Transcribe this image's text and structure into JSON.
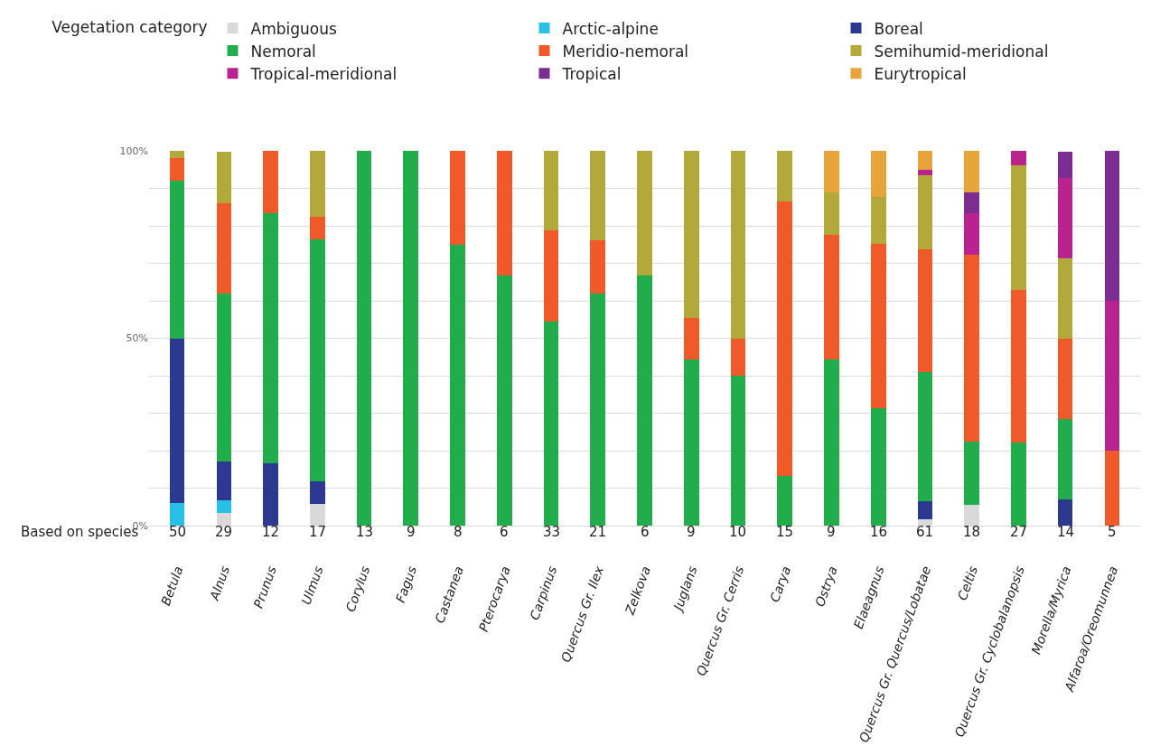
{
  "chart_data": {
    "type": "bar",
    "stacked": true,
    "legend_title": "Vegetation category",
    "legend": "top",
    "categories": [
      "Betula",
      "Alnus",
      "Prunus",
      "Ulmus",
      "Corylus",
      "Fagus",
      "Castanea",
      "Pterocarya",
      "Carpinus",
      "Quercus Gr. Ilex",
      "Zelkova",
      "Juglans",
      "Quercus Gr. Cerris",
      "Carya",
      "Ostrya",
      "Elaeagnus",
      "Quercus Gr. Quercus/Lobatae",
      "Celtis",
      "Quercus Gr. Cyclobalanopsis",
      "Morella/Myrica",
      "Alfaroa/Oreomunnea"
    ],
    "series": [
      {
        "name": "Ambiguous",
        "color": "#d9d9d9",
        "values": [
          null,
          3.4,
          null,
          5.9,
          null,
          null,
          null,
          null,
          null,
          null,
          null,
          null,
          null,
          null,
          null,
          null,
          1.6,
          5.6,
          null,
          null,
          null
        ]
      },
      {
        "name": "Arctic-alpine",
        "color": "#29c0e8",
        "values": [
          6.0,
          3.4,
          null,
          null,
          null,
          null,
          null,
          null,
          null,
          null,
          null,
          null,
          null,
          null,
          null,
          null,
          null,
          null,
          null,
          null,
          null
        ]
      },
      {
        "name": "Boreal",
        "color": "#2b3990",
        "values": [
          44.0,
          10.3,
          16.7,
          5.9,
          null,
          null,
          null,
          null,
          null,
          null,
          null,
          null,
          null,
          null,
          null,
          null,
          4.9,
          null,
          null,
          7.1,
          null
        ]
      },
      {
        "name": "Nemoral",
        "color": "#21ad4b",
        "values": [
          42.0,
          44.8,
          66.7,
          64.7,
          100,
          100,
          75.0,
          66.7,
          54.5,
          61.9,
          66.7,
          44.4,
          40.0,
          13.3,
          44.4,
          31.3,
          34.4,
          16.7,
          22.2,
          21.4,
          null
        ]
      },
      {
        "name": "Meridio-nemoral",
        "color": "#f05a28",
        "values": [
          6.0,
          24.1,
          16.7,
          5.9,
          null,
          null,
          25.0,
          33.3,
          24.2,
          14.3,
          null,
          11.1,
          10.0,
          73.3,
          33.3,
          43.8,
          32.8,
          50.0,
          40.7,
          21.4,
          20.0
        ]
      },
      {
        "name": "Semihumid-meridional",
        "color": "#b3a93b",
        "values": [
          2.0,
          13.8,
          null,
          17.6,
          null,
          null,
          null,
          null,
          21.2,
          23.8,
          33.3,
          44.4,
          50.0,
          13.3,
          11.1,
          12.5,
          19.7,
          null,
          33.3,
          21.4,
          null
        ]
      },
      {
        "name": "Tropical-meridional",
        "color": "#b8238f",
        "values": [
          null,
          null,
          null,
          null,
          null,
          null,
          null,
          null,
          null,
          null,
          null,
          null,
          null,
          null,
          null,
          null,
          1.6,
          11.1,
          3.7,
          21.4,
          40.0
        ]
      },
      {
        "name": "Tropical",
        "color": "#7b2d92",
        "values": [
          null,
          null,
          null,
          null,
          null,
          null,
          null,
          null,
          null,
          null,
          null,
          null,
          null,
          null,
          null,
          null,
          null,
          5.6,
          null,
          7.1,
          40.0
        ]
      },
      {
        "name": "Eurytropical",
        "color": "#e6a43a",
        "values": [
          null,
          null,
          null,
          null,
          null,
          null,
          null,
          null,
          null,
          null,
          null,
          null,
          null,
          null,
          11.1,
          12.5,
          4.9,
          11.1,
          null,
          null,
          null
        ]
      }
    ],
    "ylim": [
      0,
      100
    ],
    "yticks": [
      {
        "value": 0,
        "label": "0%"
      },
      {
        "value": 10,
        "label": null
      },
      {
        "value": 20,
        "label": null
      },
      {
        "value": 30,
        "label": null
      },
      {
        "value": 40,
        "label": null
      },
      {
        "value": 50,
        "label": "50%"
      },
      {
        "value": 60,
        "label": null
      },
      {
        "value": 70,
        "label": null
      },
      {
        "value": 80,
        "label": null
      },
      {
        "value": 90,
        "label": null
      },
      {
        "value": 100,
        "label": "100%"
      }
    ],
    "grid": "y",
    "annotations": [
      "Based on species",
      "50",
      "29",
      "12",
      "17",
      "13",
      "9",
      "8",
      "6",
      "33",
      "21",
      "6",
      "9",
      "10",
      "15",
      "9",
      "16",
      "61",
      "18",
      "27",
      "14",
      "5"
    ]
  }
}
